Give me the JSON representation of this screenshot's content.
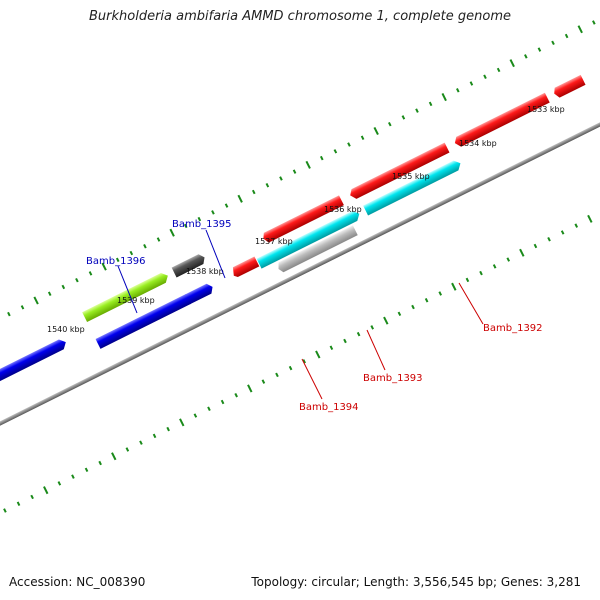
{
  "title": "Burkholderia ambifaria AMMD chromosome 1, complete genome",
  "footer": {
    "accession": "Accession: NC_008390",
    "summary": "Topology: circular; Length: 3,556,545 bp; Genes: 3,281"
  },
  "colors": {
    "background": "#ffffff",
    "backbone": "#8a8a8a",
    "ticks": "#1a8a1a",
    "red_gene": "#ff0000",
    "blue_gene": "#0000ee",
    "cyan_gene": "#00e5ee",
    "green_gene": "#99ee22",
    "dark_gray_gene": "#555555",
    "light_gray_gene": "#b8b8b8",
    "red_label": "#cc0000",
    "blue_label": "#0000bb"
  },
  "scale": {
    "ticks": [
      "1533 kbp",
      "1534 kbp",
      "1535 kbp",
      "1536 kbp",
      "1537 kbp",
      "1538 kbp",
      "1539 kbp",
      "1540 kbp"
    ]
  },
  "genes": [
    {
      "name": "Bamb_1392",
      "strand": "reverse",
      "color": "red_gene",
      "labeled": true
    },
    {
      "name": "Bamb_1393",
      "strand": "reverse",
      "color": "light_gray_gene",
      "labeled": true
    },
    {
      "name": "Bamb_1394",
      "strand": "reverse",
      "color": "red_gene",
      "labeled": true
    },
    {
      "name": "Bamb_1395",
      "strand": "forward",
      "color": "dark_gray_gene",
      "labeled": true
    },
    {
      "name": "Bamb_1396",
      "strand": "forward",
      "color": "green_gene",
      "labeled": true
    }
  ]
}
